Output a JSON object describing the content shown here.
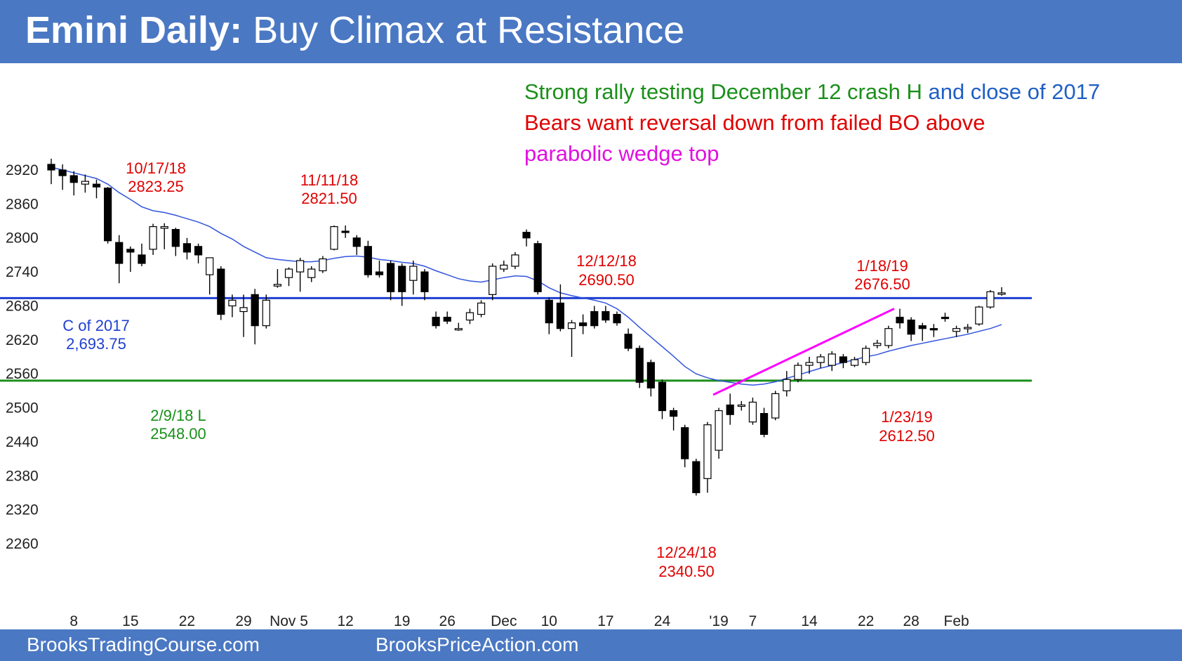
{
  "header": {
    "title_bold": "Emini Daily:",
    "title_rest": " Buy Climax at Resistance",
    "background": "#4a78c3"
  },
  "footer": {
    "link_left": "BrooksTradingCourse.com",
    "link_right": "BrooksPriceAction.com"
  },
  "colors": {
    "red": "#e00000",
    "green": "#1a8f1a",
    "blue": "#1f3fd1",
    "text_blue": "#1f5fc4",
    "magenta": "#ff00ff",
    "ma": "#3355dd"
  },
  "chart_data": {
    "type": "candlestick",
    "title": "Emini Daily: Buy Climax at Resistance",
    "ylim": [
      2230,
      2950
    ],
    "yticks": [
      2920,
      2860,
      2800,
      2740,
      2680,
      2620,
      2560,
      2500,
      2440,
      2380,
      2320,
      2260
    ],
    "xticks": [
      {
        "label": "8",
        "bar": 2
      },
      {
        "label": "15",
        "bar": 7
      },
      {
        "label": "22",
        "bar": 12
      },
      {
        "label": "29",
        "bar": 17
      },
      {
        "label": "Nov 5",
        "bar": 21
      },
      {
        "label": "12",
        "bar": 26
      },
      {
        "label": "19",
        "bar": 31
      },
      {
        "label": "26",
        "bar": 35
      },
      {
        "label": "Dec",
        "bar": 40
      },
      {
        "label": "10",
        "bar": 44
      },
      {
        "label": "17",
        "bar": 49
      },
      {
        "label": "24",
        "bar": 54
      },
      {
        "label": "'19",
        "bar": 59
      },
      {
        "label": "7",
        "bar": 62
      },
      {
        "label": "14",
        "bar": 67
      },
      {
        "label": "22",
        "bar": 72
      },
      {
        "label": "28",
        "bar": 76
      },
      {
        "label": "Feb",
        "bar": 80
      }
    ],
    "candles": [
      {
        "o": 2930,
        "h": 2940,
        "l": 2895,
        "c": 2920
      },
      {
        "o": 2920,
        "h": 2930,
        "l": 2885,
        "c": 2910
      },
      {
        "o": 2910,
        "h": 2918,
        "l": 2875,
        "c": 2898
      },
      {
        "o": 2895,
        "h": 2912,
        "l": 2880,
        "c": 2900
      },
      {
        "o": 2895,
        "h": 2903,
        "l": 2870,
        "c": 2890
      },
      {
        "o": 2888,
        "h": 2890,
        "l": 2790,
        "c": 2795
      },
      {
        "o": 2792,
        "h": 2805,
        "l": 2720,
        "c": 2755
      },
      {
        "o": 2780,
        "h": 2785,
        "l": 2740,
        "c": 2775
      },
      {
        "o": 2770,
        "h": 2790,
        "l": 2750,
        "c": 2755
      },
      {
        "o": 2780,
        "h": 2825,
        "l": 2770,
        "c": 2820
      },
      {
        "o": 2817,
        "h": 2826,
        "l": 2780,
        "c": 2820
      },
      {
        "o": 2815,
        "h": 2818,
        "l": 2768,
        "c": 2785
      },
      {
        "o": 2790,
        "h": 2800,
        "l": 2762,
        "c": 2775
      },
      {
        "o": 2785,
        "h": 2790,
        "l": 2755,
        "c": 2770
      },
      {
        "o": 2735,
        "h": 2760,
        "l": 2700,
        "c": 2765
      },
      {
        "o": 2745,
        "h": 2750,
        "l": 2655,
        "c": 2665
      },
      {
        "o": 2680,
        "h": 2700,
        "l": 2660,
        "c": 2690
      },
      {
        "o": 2670,
        "h": 2700,
        "l": 2625,
        "c": 2677
      },
      {
        "o": 2700,
        "h": 2710,
        "l": 2612,
        "c": 2645
      },
      {
        "o": 2645,
        "h": 2700,
        "l": 2640,
        "c": 2690
      },
      {
        "o": 2715,
        "h": 2745,
        "l": 2712,
        "c": 2718
      },
      {
        "o": 2730,
        "h": 2748,
        "l": 2715,
        "c": 2745
      },
      {
        "o": 2740,
        "h": 2765,
        "l": 2705,
        "c": 2760
      },
      {
        "o": 2730,
        "h": 2750,
        "l": 2722,
        "c": 2745
      },
      {
        "o": 2742,
        "h": 2768,
        "l": 2738,
        "c": 2763
      },
      {
        "o": 2780,
        "h": 2822,
        "l": 2778,
        "c": 2820
      },
      {
        "o": 2812,
        "h": 2822,
        "l": 2800,
        "c": 2810
      },
      {
        "o": 2800,
        "h": 2805,
        "l": 2770,
        "c": 2785
      },
      {
        "o": 2785,
        "h": 2795,
        "l": 2730,
        "c": 2735
      },
      {
        "o": 2740,
        "h": 2760,
        "l": 2730,
        "c": 2735
      },
      {
        "o": 2755,
        "h": 2760,
        "l": 2690,
        "c": 2705
      },
      {
        "o": 2750,
        "h": 2755,
        "l": 2680,
        "c": 2705
      },
      {
        "o": 2725,
        "h": 2760,
        "l": 2700,
        "c": 2750
      },
      {
        "o": 2740,
        "h": 2745,
        "l": 2690,
        "c": 2705
      },
      {
        "o": 2660,
        "h": 2670,
        "l": 2640,
        "c": 2645
      },
      {
        "o": 2660,
        "h": 2670,
        "l": 2648,
        "c": 2653
      },
      {
        "o": 2640,
        "h": 2650,
        "l": 2636,
        "c": 2640
      },
      {
        "o": 2655,
        "h": 2675,
        "l": 2648,
        "c": 2668
      },
      {
        "o": 2665,
        "h": 2690,
        "l": 2660,
        "c": 2685
      },
      {
        "o": 2700,
        "h": 2755,
        "l": 2690,
        "c": 2750
      },
      {
        "o": 2745,
        "h": 2760,
        "l": 2740,
        "c": 2752
      },
      {
        "o": 2750,
        "h": 2775,
        "l": 2745,
        "c": 2770
      },
      {
        "o": 2810,
        "h": 2815,
        "l": 2785,
        "c": 2800
      },
      {
        "o": 2790,
        "h": 2795,
        "l": 2700,
        "c": 2705
      },
      {
        "o": 2690,
        "h": 2695,
        "l": 2630,
        "c": 2650
      },
      {
        "o": 2685,
        "h": 2718,
        "l": 2635,
        "c": 2640
      },
      {
        "o": 2640,
        "h": 2655,
        "l": 2590,
        "c": 2650
      },
      {
        "o": 2650,
        "h": 2665,
        "l": 2630,
        "c": 2645
      },
      {
        "o": 2670,
        "h": 2680,
        "l": 2640,
        "c": 2645
      },
      {
        "o": 2670,
        "h": 2680,
        "l": 2650,
        "c": 2655
      },
      {
        "o": 2665,
        "h": 2670,
        "l": 2645,
        "c": 2650
      },
      {
        "o": 2630,
        "h": 2640,
        "l": 2600,
        "c": 2605
      },
      {
        "o": 2605,
        "h": 2610,
        "l": 2535,
        "c": 2545
      },
      {
        "o": 2580,
        "h": 2585,
        "l": 2520,
        "c": 2535
      },
      {
        "o": 2545,
        "h": 2550,
        "l": 2480,
        "c": 2495
      },
      {
        "o": 2495,
        "h": 2500,
        "l": 2460,
        "c": 2485
      },
      {
        "o": 2465,
        "h": 2470,
        "l": 2395,
        "c": 2410
      },
      {
        "o": 2405,
        "h": 2410,
        "l": 2345,
        "c": 2350
      },
      {
        "o": 2375,
        "h": 2475,
        "l": 2350,
        "c": 2470
      },
      {
        "o": 2425,
        "h": 2500,
        "l": 2410,
        "c": 2495
      },
      {
        "o": 2505,
        "h": 2525,
        "l": 2470,
        "c": 2488
      },
      {
        "o": 2505,
        "h": 2512,
        "l": 2495,
        "c": 2505
      },
      {
        "o": 2475,
        "h": 2518,
        "l": 2470,
        "c": 2510
      },
      {
        "o": 2490,
        "h": 2500,
        "l": 2448,
        "c": 2453
      },
      {
        "o": 2482,
        "h": 2530,
        "l": 2478,
        "c": 2525
      },
      {
        "o": 2530,
        "h": 2565,
        "l": 2520,
        "c": 2550
      },
      {
        "o": 2550,
        "h": 2580,
        "l": 2545,
        "c": 2575
      },
      {
        "o": 2575,
        "h": 2590,
        "l": 2560,
        "c": 2580
      },
      {
        "o": 2580,
        "h": 2595,
        "l": 2570,
        "c": 2590
      },
      {
        "o": 2575,
        "h": 2600,
        "l": 2565,
        "c": 2595
      },
      {
        "o": 2590,
        "h": 2595,
        "l": 2570,
        "c": 2580
      },
      {
        "o": 2575,
        "h": 2590,
        "l": 2572,
        "c": 2585
      },
      {
        "o": 2580,
        "h": 2610,
        "l": 2575,
        "c": 2605
      },
      {
        "o": 2610,
        "h": 2620,
        "l": 2605,
        "c": 2614
      },
      {
        "o": 2610,
        "h": 2645,
        "l": 2605,
        "c": 2640
      },
      {
        "o": 2660,
        "h": 2675,
        "l": 2640,
        "c": 2650
      },
      {
        "o": 2655,
        "h": 2660,
        "l": 2618,
        "c": 2630
      },
      {
        "o": 2645,
        "h": 2650,
        "l": 2618,
        "c": 2640
      },
      {
        "o": 2640,
        "h": 2648,
        "l": 2625,
        "c": 2638
      },
      {
        "o": 2660,
        "h": 2668,
        "l": 2652,
        "c": 2658
      },
      {
        "o": 2635,
        "h": 2645,
        "l": 2625,
        "c": 2640
      },
      {
        "o": 2640,
        "h": 2648,
        "l": 2632,
        "c": 2642
      },
      {
        "o": 2648,
        "h": 2680,
        "l": 2645,
        "c": 2678
      },
      {
        "o": 2678,
        "h": 2708,
        "l": 2675,
        "c": 2705
      },
      {
        "o": 2702,
        "h": 2713,
        "l": 2698,
        "c": 2703
      }
    ],
    "moving_average": [
      2925,
      2920,
      2915,
      2910,
      2905,
      2895,
      2880,
      2868,
      2855,
      2848,
      2845,
      2840,
      2834,
      2828,
      2820,
      2808,
      2798,
      2785,
      2775,
      2765,
      2762,
      2760,
      2758,
      2758,
      2760,
      2764,
      2767,
      2768,
      2766,
      2762,
      2760,
      2757,
      2755,
      2750,
      2742,
      2735,
      2728,
      2724,
      2722,
      2726,
      2730,
      2733,
      2732,
      2724,
      2712,
      2703,
      2698,
      2694,
      2690,
      2685,
      2675,
      2660,
      2642,
      2625,
      2608,
      2591,
      2573,
      2560,
      2553,
      2548,
      2545,
      2542,
      2540,
      2542,
      2546,
      2552,
      2558,
      2564,
      2570,
      2575,
      2580,
      2585,
      2590,
      2594,
      2600,
      2605,
      2610,
      2614,
      2618,
      2622,
      2626,
      2630,
      2635,
      2640,
      2647
    ],
    "reference_lines": [
      {
        "value": 2693.75,
        "color": "#1f3fd1",
        "label": "C of 2017"
      },
      {
        "value": 2548.0,
        "color": "#1a8f1a",
        "label": "2/9/18 L"
      }
    ],
    "trend_line": {
      "x1": 58.5,
      "y1": 2523,
      "x2": 74.5,
      "y2": 2675,
      "color": "#ff00ff"
    },
    "price_labels": [
      {
        "date": "10/17/18",
        "price": "2823.25"
      },
      {
        "date": "11/11/18",
        "price": "2821.50"
      },
      {
        "date": "12/12/18",
        "price": "2690.50"
      },
      {
        "date": "1/18/19",
        "price": "2676.50"
      },
      {
        "date": "1/23/19",
        "price": "2612.50"
      },
      {
        "date": "12/24/18",
        "price": "2340.50"
      }
    ],
    "level_labels": {
      "c2017_line1": "C of 2017",
      "c2017_line2": "2,693.75",
      "low_line1": "2/9/18 L",
      "low_line2": "2548.00"
    },
    "commentary": {
      "line1_green": "Strong rally testing December 12 crash H ",
      "line1_blue": "and close of 2017",
      "line2_red": "Bears want reversal down from failed BO above",
      "line3_magenta": "parabolic wedge top"
    }
  }
}
